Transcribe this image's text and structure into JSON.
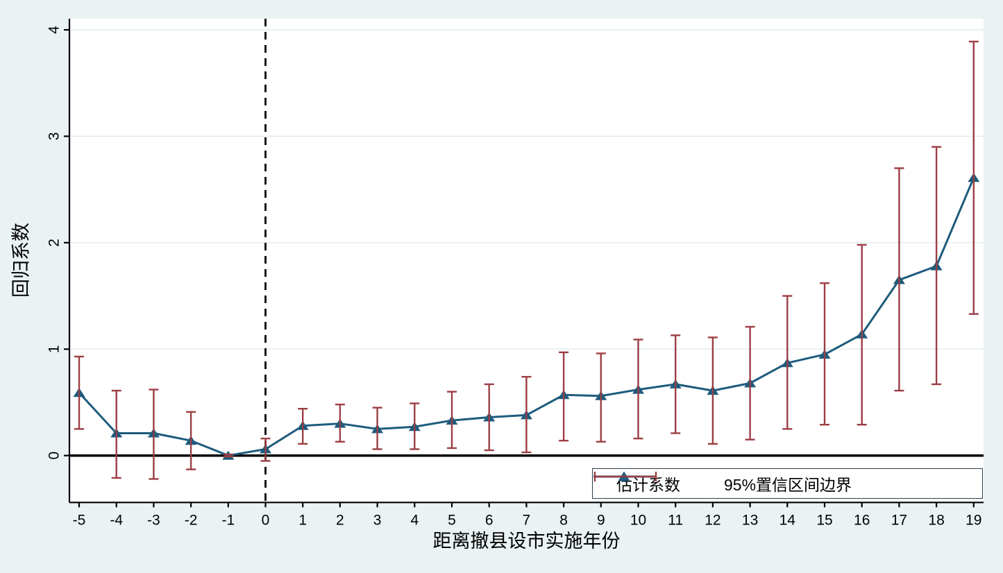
{
  "chart_data": {
    "type": "line",
    "title": "",
    "xlabel": "距离撤县设市实施年份",
    "ylabel": "回归系数",
    "x_ticks": [
      -5,
      -4,
      -3,
      -2,
      -1,
      0,
      1,
      2,
      3,
      4,
      5,
      6,
      7,
      8,
      9,
      10,
      11,
      12,
      13,
      14,
      15,
      16,
      17,
      18,
      19
    ],
    "y_ticks": [
      0,
      1,
      2,
      3,
      4
    ],
    "xlim": [
      -5.27,
      19.27
    ],
    "ylim": [
      -0.44,
      4.08
    ],
    "grid": "horizontal",
    "legend_position": "bottom-right-inside",
    "reference_lines": {
      "vertical_dashed_x": 0,
      "horizontal_solid_y": 0
    },
    "series": [
      {
        "name": "估计系数",
        "type": "line",
        "marker": "triangle",
        "color": "#1d5b7c",
        "x": [
          -5,
          -4,
          -3,
          -2,
          -1,
          0,
          1,
          2,
          3,
          4,
          5,
          6,
          7,
          8,
          9,
          10,
          11,
          12,
          13,
          14,
          15,
          16,
          17,
          18,
          19
        ],
        "values": [
          0.59,
          0.21,
          0.21,
          0.14,
          0.0,
          0.06,
          0.28,
          0.3,
          0.25,
          0.27,
          0.33,
          0.36,
          0.38,
          0.57,
          0.56,
          0.62,
          0.67,
          0.61,
          0.68,
          0.87,
          0.95,
          1.14,
          1.65,
          1.78,
          2.61
        ]
      },
      {
        "name": "95%置信区间边界",
        "type": "errorbar",
        "color": "#9c3d44",
        "x": [
          -5,
          -4,
          -3,
          -2,
          -1,
          0,
          1,
          2,
          3,
          4,
          5,
          6,
          7,
          8,
          9,
          10,
          11,
          12,
          13,
          14,
          15,
          16,
          17,
          18,
          19
        ],
        "lower": [
          0.25,
          -0.21,
          -0.22,
          -0.13,
          -0.01,
          -0.05,
          0.11,
          0.13,
          0.06,
          0.06,
          0.07,
          0.05,
          0.03,
          0.14,
          0.13,
          0.16,
          0.21,
          0.11,
          0.15,
          0.25,
          0.29,
          0.29,
          0.61,
          0.67,
          1.33
        ],
        "upper": [
          0.93,
          0.61,
          0.62,
          0.41,
          0.01,
          0.16,
          0.44,
          0.48,
          0.45,
          0.49,
          0.6,
          0.67,
          0.74,
          0.97,
          0.96,
          1.09,
          1.13,
          1.11,
          1.21,
          1.5,
          1.62,
          1.98,
          2.7,
          2.9,
          3.89
        ]
      }
    ],
    "colors": {
      "background": "#eaf2f3",
      "plot_background": "#ffffff",
      "gridline": "#e2edef",
      "axis": "#000000",
      "line": "#1d5b7c",
      "errorbar": "#9c3d44"
    }
  },
  "legend": {
    "items": [
      {
        "label": "估计系数"
      },
      {
        "label": "95%置信区间边界"
      }
    ]
  }
}
